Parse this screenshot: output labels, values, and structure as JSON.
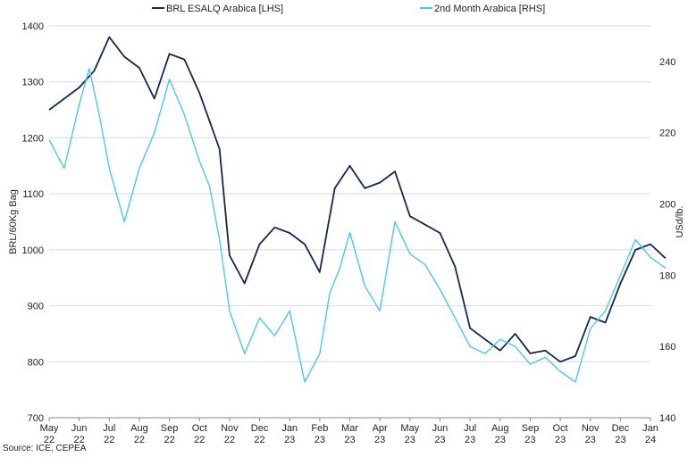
{
  "chart_data": {
    "type": "line",
    "title": "",
    "x_ticks": [
      {
        "month": "May",
        "year": "22"
      },
      {
        "month": "Jun",
        "year": "22"
      },
      {
        "month": "Jul",
        "year": "22"
      },
      {
        "month": "Aug",
        "year": "22"
      },
      {
        "month": "Sep",
        "year": "22"
      },
      {
        "month": "Oct",
        "year": "22"
      },
      {
        "month": "Nov",
        "year": "22"
      },
      {
        "month": "Dec",
        "year": "22"
      },
      {
        "month": "Jan",
        "year": "23"
      },
      {
        "month": "Feb",
        "year": "23"
      },
      {
        "month": "Mar",
        "year": "23"
      },
      {
        "month": "Apr",
        "year": "23"
      },
      {
        "month": "May",
        "year": "23"
      },
      {
        "month": "Jun",
        "year": "23"
      },
      {
        "month": "Jul",
        "year": "23"
      },
      {
        "month": "Aug",
        "year": "23"
      },
      {
        "month": "Sep",
        "year": "23"
      },
      {
        "month": "Oct",
        "year": "23"
      },
      {
        "month": "Nov",
        "year": "23"
      },
      {
        "month": "Dec",
        "year": "23"
      },
      {
        "month": "Jan",
        "year": "24"
      }
    ],
    "y_left": {
      "label": "BRL/60Kg Bag",
      "min": 700,
      "max": 1400,
      "ticks": [
        700,
        800,
        900,
        1000,
        1100,
        1200,
        1300,
        1400
      ]
    },
    "y_right": {
      "label": "USd/lb.",
      "min": 140,
      "max": 250,
      "ticks": [
        140,
        160,
        180,
        200,
        220,
        240
      ]
    },
    "grid": "horizontal",
    "legend_position": "top",
    "series": [
      {
        "name": "BRL ESALQ Arabica [LHS]",
        "axis": "left",
        "color": "#16264f",
        "points": [
          [
            "May 22",
            1250
          ],
          [
            "Jun 22",
            1290
          ],
          [
            "Jun 22",
            1320
          ],
          [
            "Jul 22",
            1380
          ],
          [
            "Jul 22",
            1345
          ],
          [
            "Aug 22",
            1325
          ],
          [
            "Aug 22",
            1270
          ],
          [
            "Sep 22",
            1350
          ],
          [
            "Sep 22",
            1340
          ],
          [
            "Oct 22",
            1280
          ],
          [
            "Oct 22",
            1230
          ],
          [
            "Oct 22",
            1180
          ],
          [
            "Nov 22",
            990
          ],
          [
            "Nov 22",
            940
          ],
          [
            "Dec 22",
            1010
          ],
          [
            "Dec 22",
            1040
          ],
          [
            "Jan 23",
            1030
          ],
          [
            "Jan 23",
            1010
          ],
          [
            "Feb 23",
            960
          ],
          [
            "Feb 23",
            1110
          ],
          [
            "Mar 23",
            1150
          ],
          [
            "Mar 23",
            1110
          ],
          [
            "Apr 23",
            1120
          ],
          [
            "Apr 23",
            1140
          ],
          [
            "May 23",
            1060
          ],
          [
            "Jun 23",
            1030
          ],
          [
            "Jun 23",
            970
          ],
          [
            "Jul 23",
            860
          ],
          [
            "Aug 23",
            820
          ],
          [
            "Aug 23",
            850
          ],
          [
            "Sep 23",
            815
          ],
          [
            "Sep 23",
            820
          ],
          [
            "Oct 23",
            800
          ],
          [
            "Oct 23",
            810
          ],
          [
            "Nov 23",
            880
          ],
          [
            "Nov 23",
            870
          ],
          [
            "Dec 23",
            940
          ],
          [
            "Dec 23",
            1000
          ],
          [
            "Jan 24",
            1010
          ],
          [
            "Jan 24",
            985
          ]
        ]
      },
      {
        "name": "2nd Month Arabica [RHS]",
        "axis": "right",
        "color": "#4cc9e8",
        "points": [
          [
            "May 22",
            218
          ],
          [
            "May 22",
            210
          ],
          [
            "Jun 22",
            228
          ],
          [
            "Jun 22",
            238
          ],
          [
            "Jun 22",
            225
          ],
          [
            "Jul 22",
            210
          ],
          [
            "Jul 22",
            195
          ],
          [
            "Aug 22",
            210
          ],
          [
            "Aug 22",
            220
          ],
          [
            "Sep 22",
            235
          ],
          [
            "Sep 22",
            225
          ],
          [
            "Oct 22",
            212
          ],
          [
            "Oct 22",
            205
          ],
          [
            "Oct 22",
            190
          ],
          [
            "Nov 22",
            170
          ],
          [
            "Nov 22",
            158
          ],
          [
            "Dec 22",
            168
          ],
          [
            "Dec 22",
            163
          ],
          [
            "Jan 23",
            170
          ],
          [
            "Jan 23",
            150
          ],
          [
            "Feb 23",
            158
          ],
          [
            "Feb 23",
            175
          ],
          [
            "Feb 23",
            182
          ],
          [
            "Mar 23",
            192
          ],
          [
            "Mar 23",
            177
          ],
          [
            "Apr 23",
            170
          ],
          [
            "Apr 23",
            195
          ],
          [
            "May 23",
            186
          ],
          [
            "May 23",
            183
          ],
          [
            "Jun 23",
            176
          ],
          [
            "Jul 23",
            160
          ],
          [
            "Jul 23",
            158
          ],
          [
            "Aug 23",
            162
          ],
          [
            "Aug 23",
            160
          ],
          [
            "Sep 23",
            155
          ],
          [
            "Sep 23",
            157
          ],
          [
            "Oct 23",
            153
          ],
          [
            "Oct 23",
            150
          ],
          [
            "Nov 23",
            165
          ],
          [
            "Nov 23",
            170
          ],
          [
            "Dec 23",
            180
          ],
          [
            "Dec 23",
            190
          ],
          [
            "Jan 24",
            185
          ],
          [
            "Jan 24",
            182
          ]
        ]
      }
    ]
  },
  "source": "Source: ICE, CEPEA"
}
